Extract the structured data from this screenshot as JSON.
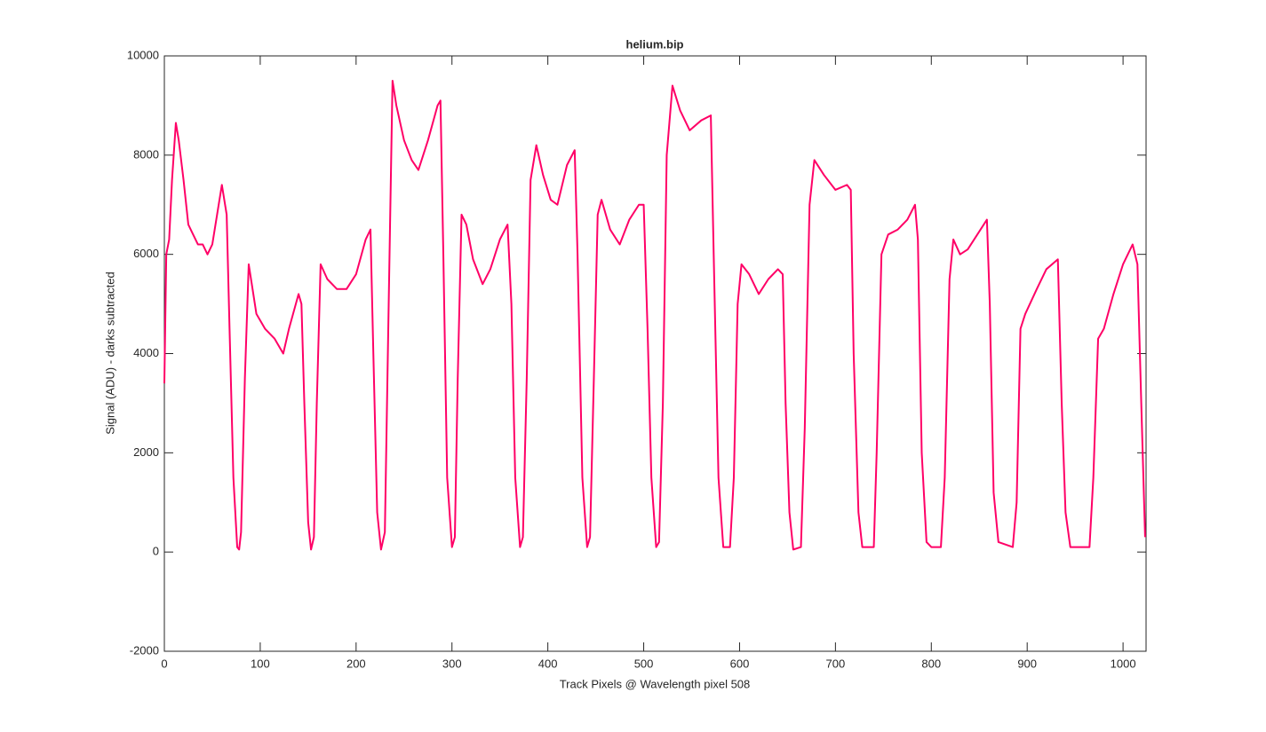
{
  "chart_data": {
    "type": "line",
    "title": "helium.bip",
    "x_label": "Track Pixels @ Wavelength pixel 508",
    "y_label": "Signal (ADU) - darks subtracted",
    "xlim": [
      0,
      1024
    ],
    "ylim": [
      -2000,
      10000
    ],
    "xticks": [
      0,
      100,
      200,
      300,
      400,
      500,
      600,
      700,
      800,
      900,
      1000
    ],
    "yticks": [
      -2000,
      0,
      2000,
      4000,
      6000,
      8000,
      10000
    ],
    "x": [
      0,
      2,
      5,
      8,
      12,
      15,
      20,
      25,
      30,
      35,
      40,
      45,
      50,
      55,
      60,
      65,
      68,
      72,
      76,
      78,
      80,
      84,
      88,
      92,
      96,
      105,
      115,
      124,
      130,
      140,
      143,
      146,
      150,
      153,
      156,
      159,
      163,
      170,
      180,
      190,
      200,
      210,
      215,
      218,
      222,
      226,
      230,
      234,
      238,
      242,
      250,
      258,
      265,
      275,
      285,
      288,
      291,
      295,
      300,
      303,
      306,
      310,
      315,
      322,
      332,
      340,
      350,
      358,
      362,
      366,
      371,
      374,
      378,
      382,
      388,
      395,
      403,
      410,
      420,
      428,
      431,
      436,
      441,
      444,
      448,
      452,
      456,
      465,
      475,
      485,
      495,
      500,
      504,
      508,
      513,
      516,
      520,
      524,
      530,
      538,
      548,
      560,
      570,
      573,
      578,
      583,
      590,
      594,
      598,
      602,
      610,
      620,
      630,
      640,
      645,
      648,
      652,
      656,
      664,
      668,
      673,
      678,
      688,
      700,
      712,
      716,
      719,
      724,
      728,
      740,
      743,
      748,
      755,
      765,
      775,
      783,
      786,
      790,
      795,
      800,
      810,
      814,
      819,
      823,
      830,
      838,
      848,
      858,
      861,
      865,
      870,
      885,
      889,
      893,
      898,
      910,
      920,
      932,
      936,
      940,
      945,
      965,
      969,
      974,
      980,
      990,
      1000,
      1010,
      1015,
      1019,
      1023
    ],
    "series": [
      {
        "color": "#ff0066",
        "values": [
          3400,
          6000,
          6300,
          7500,
          8650,
          8300,
          7500,
          6600,
          6400,
          6200,
          6200,
          6000,
          6200,
          6800,
          7400,
          6800,
          4500,
          1500,
          100,
          50,
          400,
          3500,
          5800,
          5300,
          4800,
          4500,
          4300,
          4000,
          4500,
          5200,
          5000,
          3000,
          600,
          50,
          300,
          3000,
          5800,
          5500,
          5300,
          5300,
          5600,
          6300,
          6500,
          4000,
          800,
          50,
          400,
          5000,
          9500,
          9000,
          8300,
          7900,
          7700,
          8300,
          9000,
          9100,
          6000,
          1500,
          100,
          300,
          3500,
          6800,
          6600,
          5900,
          5400,
          5700,
          6300,
          6600,
          5000,
          1500,
          100,
          300,
          3500,
          7500,
          8200,
          7600,
          7100,
          7000,
          7800,
          8100,
          6000,
          1500,
          100,
          300,
          3500,
          6800,
          7100,
          6500,
          6200,
          6700,
          7000,
          7000,
          4500,
          1500,
          100,
          200,
          3000,
          8000,
          9400,
          8900,
          8500,
          8700,
          8800,
          6000,
          1500,
          100,
          100,
          1500,
          5000,
          5800,
          5600,
          5200,
          5500,
          5700,
          5600,
          3000,
          800,
          50,
          100,
          2500,
          7000,
          7900,
          7600,
          7300,
          7400,
          7300,
          4000,
          800,
          100,
          100,
          2000,
          6000,
          6400,
          6500,
          6700,
          7000,
          6300,
          2000,
          200,
          100,
          100,
          1500,
          5500,
          6300,
          6000,
          6100,
          6400,
          6700,
          5000,
          1200,
          200,
          100,
          1000,
          4500,
          4800,
          5300,
          5700,
          5900,
          3000,
          800,
          100,
          100,
          1500,
          4300,
          4500,
          5200,
          5800,
          6200,
          5800,
          3000,
          300
        ]
      }
    ]
  }
}
